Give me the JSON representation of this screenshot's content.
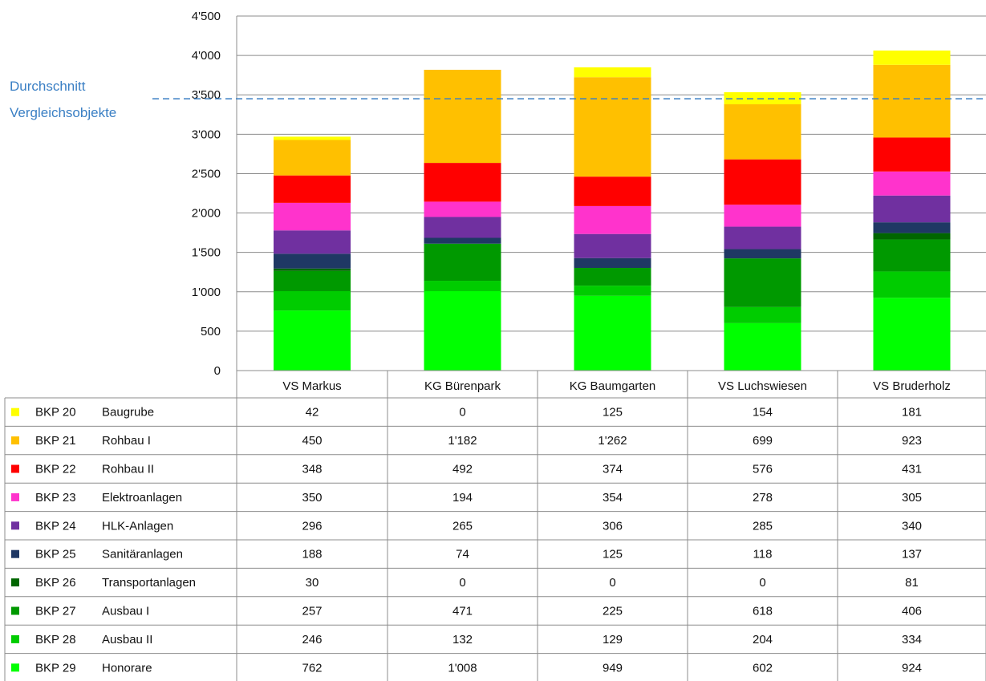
{
  "chart_data": {
    "type": "bar",
    "stacked": true,
    "title": "",
    "xlabel": "",
    "ylabel": "",
    "ylim": [
      0,
      4500
    ],
    "yticks": [
      0,
      500,
      1000,
      1500,
      2000,
      2500,
      3000,
      3500,
      4000,
      4500
    ],
    "ytick_labels": [
      "0",
      "500",
      "1'000",
      "1'500",
      "2'000",
      "2'500",
      "3'000",
      "3'500",
      "4'000",
      "4'500"
    ],
    "grid": true,
    "categories": [
      "VS Markus",
      "KG Bürenpark",
      "KG Baumgarten",
      "VS Luchswiesen",
      "VS Bruderholz"
    ],
    "series": [
      {
        "code": "BKP 29",
        "name": "Honorare",
        "color": "#00ff00",
        "values": [
          762,
          1008,
          949,
          602,
          924
        ],
        "labels": [
          "762",
          "1'008",
          "949",
          "602",
          "924"
        ]
      },
      {
        "code": "BKP 28",
        "name": "Ausbau II",
        "color": "#00cc00",
        "values": [
          246,
          132,
          129,
          204,
          334
        ],
        "labels": [
          "246",
          "132",
          "129",
          "204",
          "334"
        ]
      },
      {
        "code": "BKP 27",
        "name": "Ausbau I",
        "color": "#009900",
        "values": [
          257,
          471,
          225,
          618,
          406
        ],
        "labels": [
          "257",
          "471",
          "225",
          "618",
          "406"
        ]
      },
      {
        "code": "BKP 26",
        "name": "Transportanlagen",
        "color": "#006600",
        "values": [
          30,
          0,
          0,
          0,
          81
        ],
        "labels": [
          "30",
          "0",
          "0",
          "0",
          "81"
        ]
      },
      {
        "code": "BKP 25",
        "name": "Sanitäranlagen",
        "color": "#1f3864",
        "values": [
          188,
          74,
          125,
          118,
          137
        ],
        "labels": [
          "188",
          "74",
          "125",
          "118",
          "137"
        ]
      },
      {
        "code": "BKP 24",
        "name": "HLK-Anlagen",
        "color": "#7030a0",
        "values": [
          296,
          265,
          306,
          285,
          340
        ],
        "labels": [
          "296",
          "265",
          "306",
          "285",
          "340"
        ]
      },
      {
        "code": "BKP 23",
        "name": "Elektroanlagen",
        "color": "#ff33cc",
        "values": [
          350,
          194,
          354,
          278,
          305
        ],
        "labels": [
          "350",
          "194",
          "354",
          "278",
          "305"
        ]
      },
      {
        "code": "BKP 22",
        "name": "Rohbau II",
        "color": "#ff0000",
        "values": [
          348,
          492,
          374,
          576,
          431
        ],
        "labels": [
          "348",
          "492",
          "374",
          "576",
          "431"
        ]
      },
      {
        "code": "BKP 21",
        "name": "Rohbau I",
        "color": "#ffc000",
        "values": [
          450,
          1182,
          1262,
          699,
          923
        ],
        "labels": [
          "450",
          "1'182",
          "1'262",
          "699",
          "923"
        ]
      },
      {
        "code": "BKP 20",
        "name": "Baugrube",
        "color": "#ffff00",
        "values": [
          42,
          0,
          125,
          154,
          181
        ],
        "labels": [
          "42",
          "0",
          "125",
          "154",
          "181"
        ]
      }
    ],
    "average_line": {
      "label_line1": "Durchschnitt",
      "label_line2": "Vergleichsobjekte",
      "value": 3450,
      "color": "#3a7fc4"
    },
    "legend": "table-below"
  }
}
